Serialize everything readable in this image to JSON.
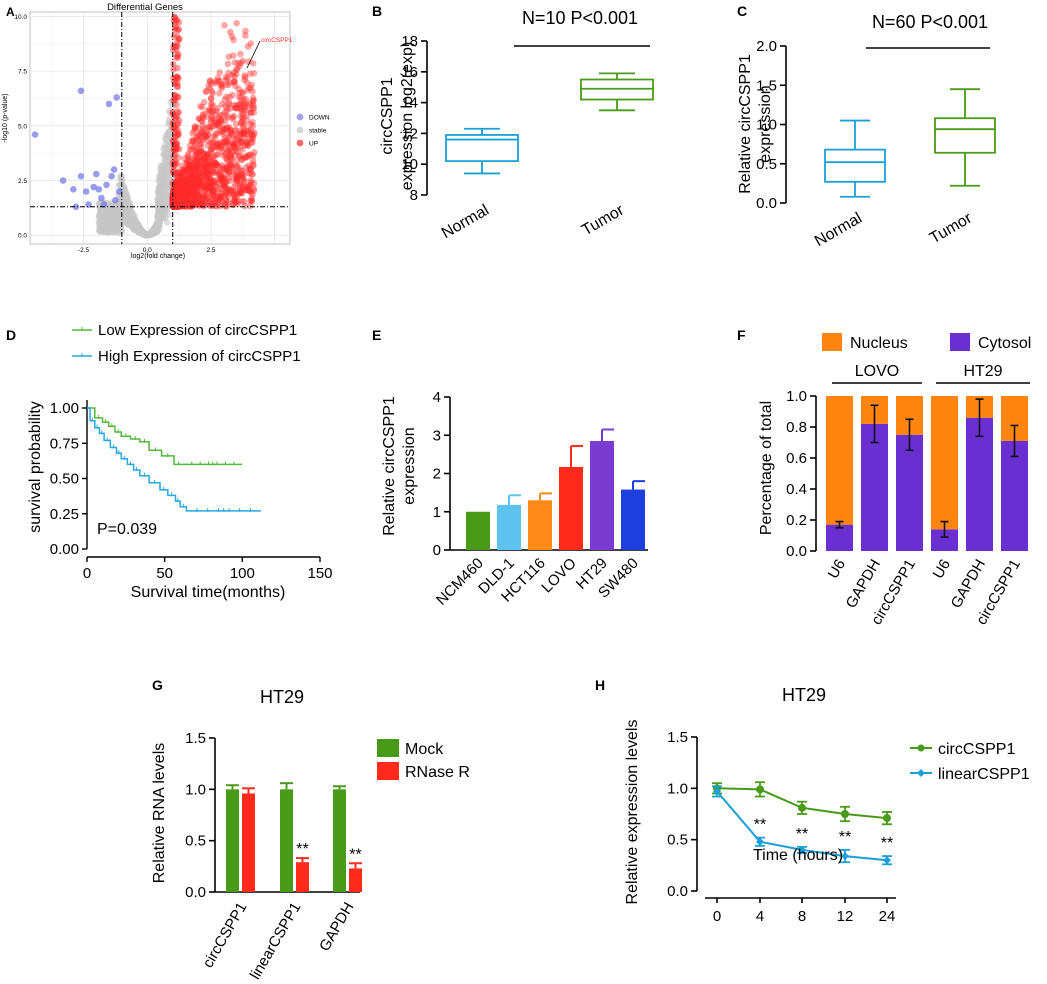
{
  "panels": {
    "A": {
      "letter": "A",
      "chart_data": {
        "type": "scatter",
        "title": "Differential Genes",
        "xlabel": "log2(fold change)",
        "ylabel": "-log10 (p-value)",
        "xlim": [
          -4.6,
          5.6
        ],
        "ylim": [
          -0.4,
          10.2
        ],
        "xticks": [
          "-2.5",
          "0.0",
          "2.5"
        ],
        "yticks": [
          "0.0",
          "2.5",
          "5.0",
          "7.5",
          "10.0"
        ],
        "fc_cutoffs": [
          -1,
          1
        ],
        "p_cutoff": 1.3,
        "legend": [
          "DOWN",
          "stable",
          "UP"
        ],
        "annotation": "circCSPP1",
        "annotation_point": [
          3.9,
          8.5
        ],
        "colors": {
          "down": "#7b7bea",
          "stable": "#c6c6c6",
          "up": "#ff2a2a"
        },
        "down_points": [
          [
            -4.4,
            4.6
          ],
          [
            -2.6,
            6.6
          ],
          [
            -1.5,
            6.0
          ],
          [
            -1.2,
            6.3
          ],
          [
            -3.3,
            2.5
          ],
          [
            -2.9,
            2.1
          ],
          [
            -2.6,
            2.7
          ],
          [
            -2.4,
            2.0
          ],
          [
            -2.1,
            2.2
          ],
          [
            -2.0,
            2.8
          ],
          [
            -1.8,
            1.7
          ],
          [
            -1.6,
            2.3
          ],
          [
            -1.4,
            2.7
          ],
          [
            -1.3,
            3.0
          ],
          [
            -2.8,
            1.3
          ],
          [
            -2.3,
            1.4
          ],
          [
            -1.7,
            1.4
          ],
          [
            -1.25,
            1.6
          ],
          [
            -1.1,
            2.0
          ],
          [
            -1.9,
            2.1
          ]
        ]
      }
    },
    "B": {
      "letter": "B",
      "chart_data": {
        "type": "boxplot",
        "title": "N=10 P<0.001",
        "ylabel": [
          "circCSPP1",
          "expression log2(exp)"
        ],
        "ylim": [
          8,
          18
        ],
        "yticks": [
          "8",
          "10",
          "12",
          "14",
          "16",
          "18"
        ],
        "categories": [
          "Normal",
          "Tumor"
        ],
        "colors": [
          "#1a9fd6",
          "#4a9a1a"
        ],
        "boxes": [
          {
            "min": 9.4,
            "q1": 10.2,
            "median": 11.6,
            "q3": 11.9,
            "max": 12.3
          },
          {
            "min": 13.5,
            "q1": 14.2,
            "median": 14.9,
            "q3": 15.5,
            "max": 15.9
          }
        ]
      }
    },
    "C": {
      "letter": "C",
      "chart_data": {
        "type": "boxplot",
        "title": "N=60 P<0.001",
        "ylabel": [
          "Relative circCSPP1",
          "expression"
        ],
        "ylim": [
          0,
          2
        ],
        "yticks": [
          "0.0",
          "0.5",
          "1.0",
          "1.5",
          "2.0"
        ],
        "categories": [
          "Normal",
          "Tumor"
        ],
        "colors": [
          "#1a9fd6",
          "#4a9a1a"
        ],
        "boxes": [
          {
            "min": 0.08,
            "q1": 0.27,
            "median": 0.52,
            "q3": 0.68,
            "max": 1.05
          },
          {
            "min": 0.22,
            "q1": 0.64,
            "median": 0.94,
            "q3": 1.08,
            "max": 1.45
          }
        ]
      }
    },
    "D": {
      "letter": "D",
      "chart_data": {
        "type": "line",
        "xlabel": "Survival time(months)",
        "ylabel": "survival probability",
        "xlim": [
          0,
          150
        ],
        "ylim": [
          0,
          1
        ],
        "xticks": [
          "0",
          "50",
          "100",
          "150"
        ],
        "yticks": [
          "0.00",
          "0.25",
          "0.50",
          "0.75",
          "1.00"
        ],
        "annotation": "P=0.039",
        "series": [
          {
            "name": "Low Expression of circCSPP1",
            "color": "#55b83a",
            "x": [
              0,
              5,
              10,
              14,
              18,
              22,
              28,
              34,
              40,
              48,
              56,
              62,
              100
            ],
            "y": [
              1.0,
              0.93,
              0.9,
              0.87,
              0.83,
              0.8,
              0.78,
              0.76,
              0.7,
              0.66,
              0.6,
              0.6,
              0.6
            ]
          },
          {
            "name": "High Expression of circCSPP1",
            "color": "#27a8e0",
            "x": [
              0,
              2,
              5,
              8,
              11,
              15,
              19,
              22,
              26,
              30,
              34,
              40,
              47,
              52,
              57,
              60,
              64,
              112
            ],
            "y": [
              1.0,
              0.91,
              0.86,
              0.82,
              0.77,
              0.72,
              0.68,
              0.64,
              0.6,
              0.56,
              0.52,
              0.47,
              0.42,
              0.38,
              0.34,
              0.3,
              0.27,
              0.27
            ]
          }
        ]
      }
    },
    "E": {
      "letter": "E",
      "chart_data": {
        "type": "bar",
        "ylabel": [
          "Relative circCSPP1",
          "expression"
        ],
        "ylim": [
          0,
          4
        ],
        "yticks": [
          "0",
          "1",
          "2",
          "3",
          "4"
        ],
        "categories": [
          "NCM460",
          "DLD-1",
          "HCT116",
          "LOVO",
          "HT29",
          "SW480"
        ],
        "values": [
          1.0,
          1.18,
          1.3,
          2.17,
          2.85,
          1.58
        ],
        "errors": [
          0,
          0.25,
          0.18,
          0.55,
          0.3,
          0.22
        ],
        "colors": [
          "#4a9a1a",
          "#5fc3f0",
          "#ff8a1a",
          "#ff2a1a",
          "#7a3cd0",
          "#1f3ee0"
        ]
      }
    },
    "F": {
      "letter": "F",
      "chart_data": {
        "type": "stacked_bar",
        "ylabel": "Percentage of total",
        "ylim": [
          0,
          1
        ],
        "yticks": [
          "0.0",
          "0.2",
          "0.4",
          "0.6",
          "0.8",
          "1.0"
        ],
        "groups": [
          "LOVO",
          "HT29"
        ],
        "categories": [
          "U6",
          "GAPDH",
          "circCSPP1",
          "U6",
          "GAPDH",
          "circCSPP1"
        ],
        "series": [
          {
            "name": "Cytosol",
            "color": "#6a2fd0",
            "values": [
              0.17,
              0.82,
              0.75,
              0.14,
              0.86,
              0.71
            ],
            "errors": [
              0.02,
              0.12,
              0.1,
              0.05,
              0.12,
              0.1
            ]
          },
          {
            "name": "Nucleus",
            "color": "#ff8410",
            "values": [
              0.83,
              0.18,
              0.25,
              0.86,
              0.14,
              0.29
            ]
          }
        ]
      }
    },
    "G": {
      "letter": "G",
      "chart_data": {
        "type": "bar",
        "title": "HT29",
        "ylabel": "Relative RNA levels",
        "ylim": [
          0,
          1.5
        ],
        "yticks": [
          "0.0",
          "0.5",
          "1.0",
          "1.5"
        ],
        "categories": [
          "circCSPP1",
          "linearCSPP1",
          "GAPDH"
        ],
        "significance": [
          "",
          "**",
          "**"
        ],
        "series": [
          {
            "name": "Mock",
            "color": "#4a9a1a",
            "values": [
              1.0,
              1.0,
              1.0
            ],
            "errors": [
              0.04,
              0.06,
              0.03
            ]
          },
          {
            "name": "RNase R",
            "color": "#ff2a1a",
            "values": [
              0.96,
              0.29,
              0.23
            ],
            "errors": [
              0.05,
              0.04,
              0.05
            ]
          }
        ]
      }
    },
    "H": {
      "letter": "H",
      "chart_data": {
        "type": "line",
        "title": "HT29",
        "xlabel": "Time  (hours)",
        "ylabel": "Relative expression levels",
        "ylim": [
          0,
          1.5
        ],
        "yticks": [
          "0.0",
          "0.5",
          "1.0",
          "1.5"
        ],
        "categories": [
          "0",
          "4",
          "8",
          "12",
          "24"
        ],
        "significance": [
          "",
          "**",
          "**",
          "**",
          "**"
        ],
        "series": [
          {
            "name": "circCSPP1",
            "color": "#4a9a1a",
            "values": [
              1.0,
              0.99,
              0.81,
              0.75,
              0.71
            ],
            "errors": [
              0.05,
              0.07,
              0.06,
              0.07,
              0.06
            ]
          },
          {
            "name": "linearCSPP1",
            "color": "#1a9fd6",
            "values": [
              0.97,
              0.48,
              0.4,
              0.34,
              0.3
            ],
            "errors": [
              0.05,
              0.04,
              0.03,
              0.06,
              0.04
            ]
          }
        ]
      }
    }
  }
}
